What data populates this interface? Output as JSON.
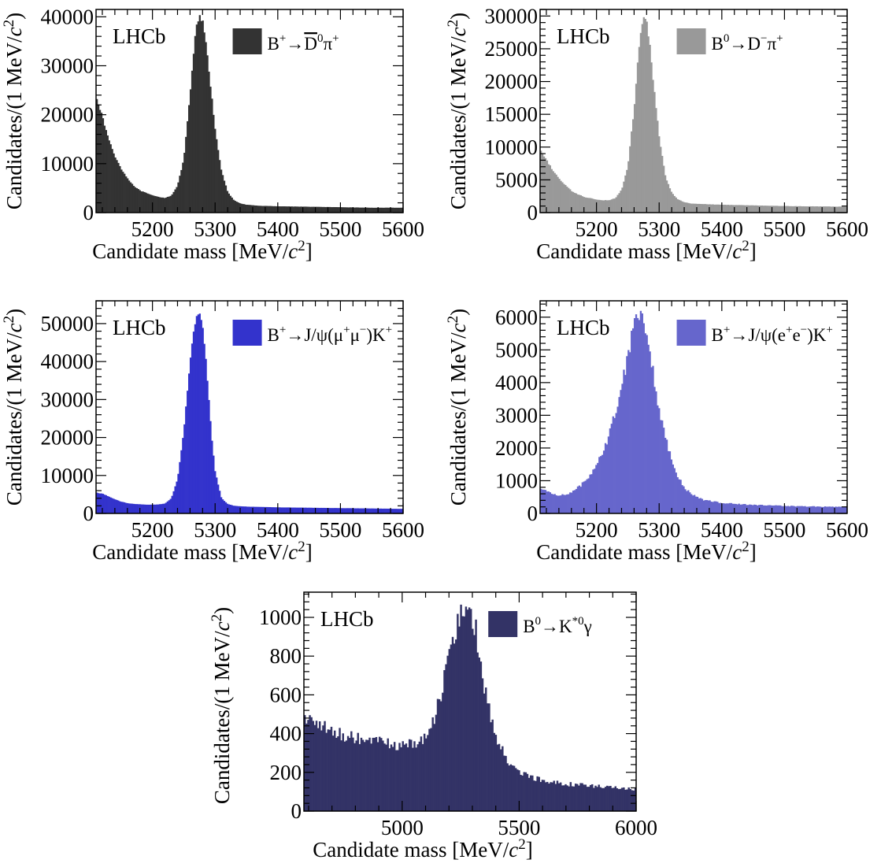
{
  "chart_data": [
    {
      "type": "bar",
      "panel": "top-left",
      "logo": "LHCb",
      "legend": {
        "placement": "top-right",
        "label_parts": [
          [
            "B",
            ""
          ],
          [
            "+",
            "sup"
          ],
          [
            "→",
            ""
          ],
          [
            "D",
            ""
          ],
          [
            "0",
            "sup"
          ],
          [
            "π",
            ""
          ],
          [
            "+",
            "sup"
          ]
        ],
        "overline_part": 3
      },
      "xlabel": "Candidate mass [MeV/c²]",
      "ylabel": "Candidates/(1 MeV/c²)",
      "xlim": [
        5110,
        5600
      ],
      "ylim": [
        0,
        41500
      ],
      "xticks": [
        5200,
        5300,
        5400,
        5500,
        5600
      ],
      "yticks": [
        0,
        10000,
        20000,
        30000,
        40000
      ],
      "color": "#333333",
      "shape": {
        "x": [
          5110,
          5120,
          5130,
          5140,
          5150,
          5160,
          5170,
          5180,
          5190,
          5200,
          5210,
          5220,
          5230,
          5240,
          5250,
          5260,
          5265,
          5270,
          5275,
          5280,
          5285,
          5290,
          5300,
          5310,
          5320,
          5330,
          5340,
          5350,
          5370,
          5400,
          5450,
          5500,
          5550,
          5600
        ],
        "y": [
          24000,
          19500,
          15000,
          11500,
          9000,
          7000,
          5500,
          4500,
          4000,
          3500,
          3200,
          3000,
          3500,
          5500,
          11000,
          24000,
          32000,
          38000,
          40000,
          39000,
          35000,
          29000,
          17000,
          8500,
          4200,
          2500,
          1900,
          1600,
          1400,
          1300,
          1200,
          1100,
          1000,
          1000
        ]
      },
      "noise": 0.008
    },
    {
      "type": "bar",
      "panel": "top-right",
      "logo": "LHCb",
      "legend": {
        "placement": "top-right",
        "label_parts": [
          [
            "B",
            ""
          ],
          [
            "0",
            "sup"
          ],
          [
            "→",
            ""
          ],
          [
            "D",
            ""
          ],
          [
            "−",
            "sup"
          ],
          [
            "π",
            ""
          ],
          [
            "+",
            "sup"
          ]
        ]
      },
      "xlabel": "Candidate mass [MeV/c²]",
      "ylabel": "Candidates/(1 MeV/c²)",
      "xlim": [
        5110,
        5600
      ],
      "ylim": [
        0,
        31000
      ],
      "xticks": [
        5200,
        5300,
        5400,
        5500,
        5600
      ],
      "yticks": [
        0,
        5000,
        10000,
        15000,
        20000,
        25000,
        30000
      ],
      "color": "#999999",
      "shape": {
        "x": [
          5110,
          5120,
          5130,
          5140,
          5150,
          5160,
          5170,
          5180,
          5190,
          5200,
          5210,
          5220,
          5230,
          5240,
          5250,
          5260,
          5265,
          5270,
          5275,
          5280,
          5285,
          5290,
          5300,
          5310,
          5320,
          5330,
          5340,
          5350,
          5370,
          5400,
          5450,
          5500,
          5550,
          5600
        ],
        "y": [
          9500,
          8000,
          6500,
          5200,
          4200,
          3300,
          2800,
          2400,
          2200,
          2000,
          1900,
          1900,
          2200,
          3500,
          7000,
          16000,
          22000,
          27500,
          29500,
          29000,
          25500,
          20500,
          11500,
          5500,
          3000,
          2000,
          1600,
          1400,
          1300,
          1200,
          1100,
          1000,
          950,
          900
        ]
      },
      "noise": 0.01
    },
    {
      "type": "bar",
      "panel": "middle-left",
      "logo": "LHCb",
      "legend": {
        "placement": "top-right",
        "label_parts": [
          [
            "B",
            ""
          ],
          [
            "+",
            "sup"
          ],
          [
            "→J/ψ(μ",
            ""
          ],
          [
            "+",
            "sup"
          ],
          [
            "μ",
            ""
          ],
          [
            "−",
            "sup"
          ],
          [
            ")K",
            ""
          ],
          [
            "+",
            "sup"
          ]
        ]
      },
      "xlabel": "Candidate mass [MeV/c²]",
      "ylabel": "Candidates/(1 MeV/c²)",
      "xlim": [
        5110,
        5600
      ],
      "ylim": [
        0,
        56000
      ],
      "xticks": [
        5200,
        5300,
        5400,
        5500,
        5600
      ],
      "yticks": [
        0,
        10000,
        20000,
        30000,
        40000,
        50000
      ],
      "color": "#3333cc",
      "shape": {
        "x": [
          5110,
          5120,
          5130,
          5140,
          5150,
          5160,
          5170,
          5180,
          5190,
          5200,
          5210,
          5220,
          5230,
          5240,
          5250,
          5255,
          5260,
          5265,
          5270,
          5275,
          5280,
          5285,
          5290,
          5295,
          5300,
          5310,
          5320,
          5330,
          5350,
          5400,
          5450,
          5500,
          5550,
          5600
        ],
        "y": [
          5500,
          5200,
          4500,
          3700,
          3100,
          2700,
          2500,
          2400,
          2300,
          2300,
          2400,
          2600,
          4000,
          9000,
          22000,
          31000,
          40000,
          47000,
          51500,
          52500,
          49000,
          41000,
          30000,
          19000,
          11000,
          4000,
          2500,
          2000,
          1800,
          1600,
          1500,
          1400,
          1300,
          1200
        ]
      },
      "noise": 0.006
    },
    {
      "type": "bar",
      "panel": "middle-right",
      "logo": "LHCb",
      "legend": {
        "placement": "top-right",
        "label_parts": [
          [
            "B",
            ""
          ],
          [
            "+",
            "sup"
          ],
          [
            "→J/ψ(e",
            ""
          ],
          [
            "+",
            "sup"
          ],
          [
            "e",
            ""
          ],
          [
            "−",
            "sup"
          ],
          [
            ")K",
            ""
          ],
          [
            "+",
            "sup"
          ]
        ]
      },
      "xlabel": "Candidate mass [MeV/c²]",
      "ylabel": "Candidates/(1 MeV/c²)",
      "xlim": [
        5110,
        5600
      ],
      "ylim": [
        0,
        6500
      ],
      "xticks": [
        5200,
        5300,
        5400,
        5500,
        5600
      ],
      "yticks": [
        0,
        1000,
        2000,
        3000,
        4000,
        5000,
        6000
      ],
      "color": "#6666cc",
      "shape": {
        "x": [
          5110,
          5120,
          5130,
          5140,
          5150,
          5160,
          5170,
          5180,
          5190,
          5200,
          5210,
          5220,
          5230,
          5240,
          5250,
          5255,
          5260,
          5265,
          5270,
          5275,
          5280,
          5285,
          5290,
          5300,
          5310,
          5320,
          5330,
          5340,
          5350,
          5370,
          5400,
          5450,
          5500,
          5550,
          5600
        ],
        "y": [
          750,
          680,
          600,
          560,
          580,
          650,
          780,
          950,
          1200,
          1500,
          1900,
          2400,
          3100,
          3900,
          4900,
          5400,
          5800,
          6100,
          6200,
          6000,
          5600,
          5000,
          4300,
          3200,
          2300,
          1600,
          1100,
          800,
          600,
          420,
          320,
          260,
          230,
          210,
          200
        ]
      },
      "noise": 0.035
    },
    {
      "type": "bar",
      "panel": "bottom-center",
      "logo": "LHCb",
      "legend": {
        "placement": "top-right",
        "label_parts": [
          [
            "B",
            ""
          ],
          [
            "0",
            "sup"
          ],
          [
            "→K",
            ""
          ],
          [
            "*0",
            "sup"
          ],
          [
            "γ",
            ""
          ]
        ]
      },
      "xlabel": "Candidate mass [MeV/c²]",
      "ylabel": "Candidates/(1 MeV/c²)",
      "xlim": [
        4580,
        6000
      ],
      "ylim": [
        0,
        1130
      ],
      "xticks": [
        5000,
        5500,
        6000
      ],
      "yticks": [
        0,
        200,
        400,
        600,
        800,
        1000
      ],
      "color": "#333366",
      "shape": {
        "x": [
          4580,
          4600,
          4650,
          4700,
          4750,
          4800,
          4850,
          4900,
          4950,
          5000,
          5050,
          5100,
          5130,
          5160,
          5190,
          5220,
          5250,
          5270,
          5290,
          5310,
          5330,
          5350,
          5380,
          5410,
          5450,
          5500,
          5550,
          5600,
          5650,
          5700,
          5800,
          5900,
          6000
        ],
        "y": [
          500,
          480,
          440,
          410,
          390,
          380,
          365,
          355,
          345,
          340,
          345,
          385,
          450,
          570,
          760,
          930,
          1040,
          1080,
          1060,
          950,
          800,
          640,
          470,
          350,
          260,
          200,
          175,
          160,
          150,
          140,
          130,
          120,
          115
        ]
      },
      "noise": 0.05
    }
  ]
}
